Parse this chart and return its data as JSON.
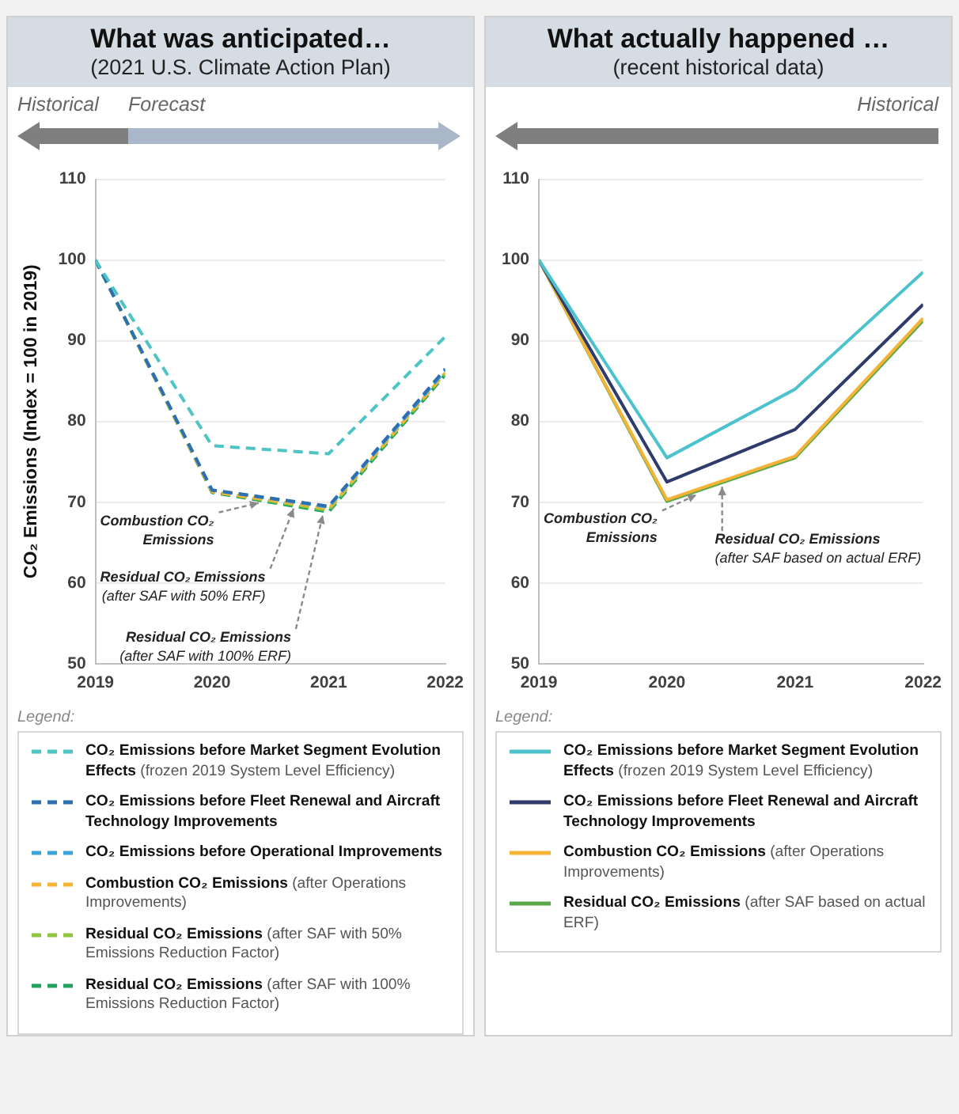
{
  "chart_data": [
    {
      "type": "line",
      "title": "What was anticipated…",
      "subtitle": "(2021 U.S. Climate Action Plan)",
      "ylabel": "CO₂ Emissions (Index = 100 in 2019)",
      "legend_title": "Legend:",
      "legend": "bottom",
      "grid": "y",
      "line_style": "dashed",
      "x": [
        2019,
        2020,
        2021,
        2022
      ],
      "xlim": [
        2019,
        2022
      ],
      "xticks": [
        2019,
        2020,
        2021,
        2022
      ],
      "ylim": [
        50,
        110
      ],
      "yticks": [
        50,
        60,
        70,
        80,
        90,
        100,
        110
      ],
      "annotations": [
        "Historical",
        "Forecast",
        {
          "text": "Combustion CO₂ Emissions",
          "x": 2020.4,
          "y": 70.5
        },
        {
          "text": "Residual CO₂ Emissions (after SAF with 50% ERF)",
          "x": 2020.7,
          "y": 69.8
        },
        {
          "text": "Residual CO₂ Emissions (after SAF with 100% ERF)",
          "x": 2020.95,
          "y": 69
        }
      ],
      "series": [
        {
          "name": "CO₂ Emissions before Market Segment Evolution Effects (frozen 2019 System Level Efficiency)",
          "color": "#4fc4c4",
          "values": [
            100,
            77,
            76,
            90.5
          ]
        },
        {
          "name": "CO₂ Emissions before Fleet Renewal and Aircraft Technology Improvements",
          "color": "#2e6fb0",
          "values": [
            100,
            71.5,
            69.5,
            86.5
          ]
        },
        {
          "name": "CO₂ Emissions before Operational Improvements",
          "color": "#3aa3dc",
          "values": [
            100,
            71.5,
            69.4,
            86.3
          ]
        },
        {
          "name": "Combustion CO₂ Emissions (after Operations Improvements)",
          "color": "#f5b335",
          "values": [
            100,
            71.3,
            69.2,
            86
          ]
        },
        {
          "name": "Residual CO₂ Emissions (after SAF with 50% Emissions Reduction Factor)",
          "color": "#8dc63f",
          "values": [
            100,
            71.3,
            69,
            86
          ]
        },
        {
          "name": "Residual CO₂ Emissions (after SAF with 100% Emissions Reduction Factor)",
          "color": "#1fa35b",
          "values": [
            100,
            71.2,
            68.8,
            85.8
          ]
        }
      ]
    },
    {
      "type": "line",
      "title": "What actually happened …",
      "subtitle": "(recent historical data)",
      "legend_title": "Legend:",
      "legend": "bottom",
      "grid": "y",
      "line_style": "solid",
      "x": [
        2019,
        2020,
        2021,
        2022
      ],
      "xlim": [
        2019,
        2022
      ],
      "xticks": [
        2019,
        2020,
        2021,
        2022
      ],
      "ylim": [
        50,
        110
      ],
      "yticks": [
        50,
        60,
        70,
        80,
        90,
        100,
        110
      ],
      "annotations": [
        "Historical",
        "Residual CO₂ Emissions (after SAF based on actual ERF)",
        {
          "text": "Combustion CO₂ Emissions",
          "x": 2020.23,
          "y": 71.5
        }
      ],
      "series": [
        {
          "name": "CO₂ Emissions before Market Segment Evolution Effects (frozen 2019 System Level Efficiency)",
          "color": "#4cc3cc",
          "values": [
            100,
            75.5,
            84,
            98.5
          ]
        },
        {
          "name": "CO₂ Emissions before Fleet Renewal and Aircraft Technology Improvements",
          "color": "#2f3b6b",
          "values": [
            100,
            72.5,
            79,
            94.5
          ]
        },
        {
          "name": "Combustion CO₂ Emissions (after Operations Improvements)",
          "color": "#f5b335",
          "values": [
            100,
            70.3,
            75.7,
            92.8
          ]
        },
        {
          "name": "Residual CO₂ Emissions (after SAF based on actual ERF)",
          "color": "#5aa84a",
          "values": [
            100,
            70.1,
            75.5,
            92.5
          ]
        }
      ]
    }
  ]
}
